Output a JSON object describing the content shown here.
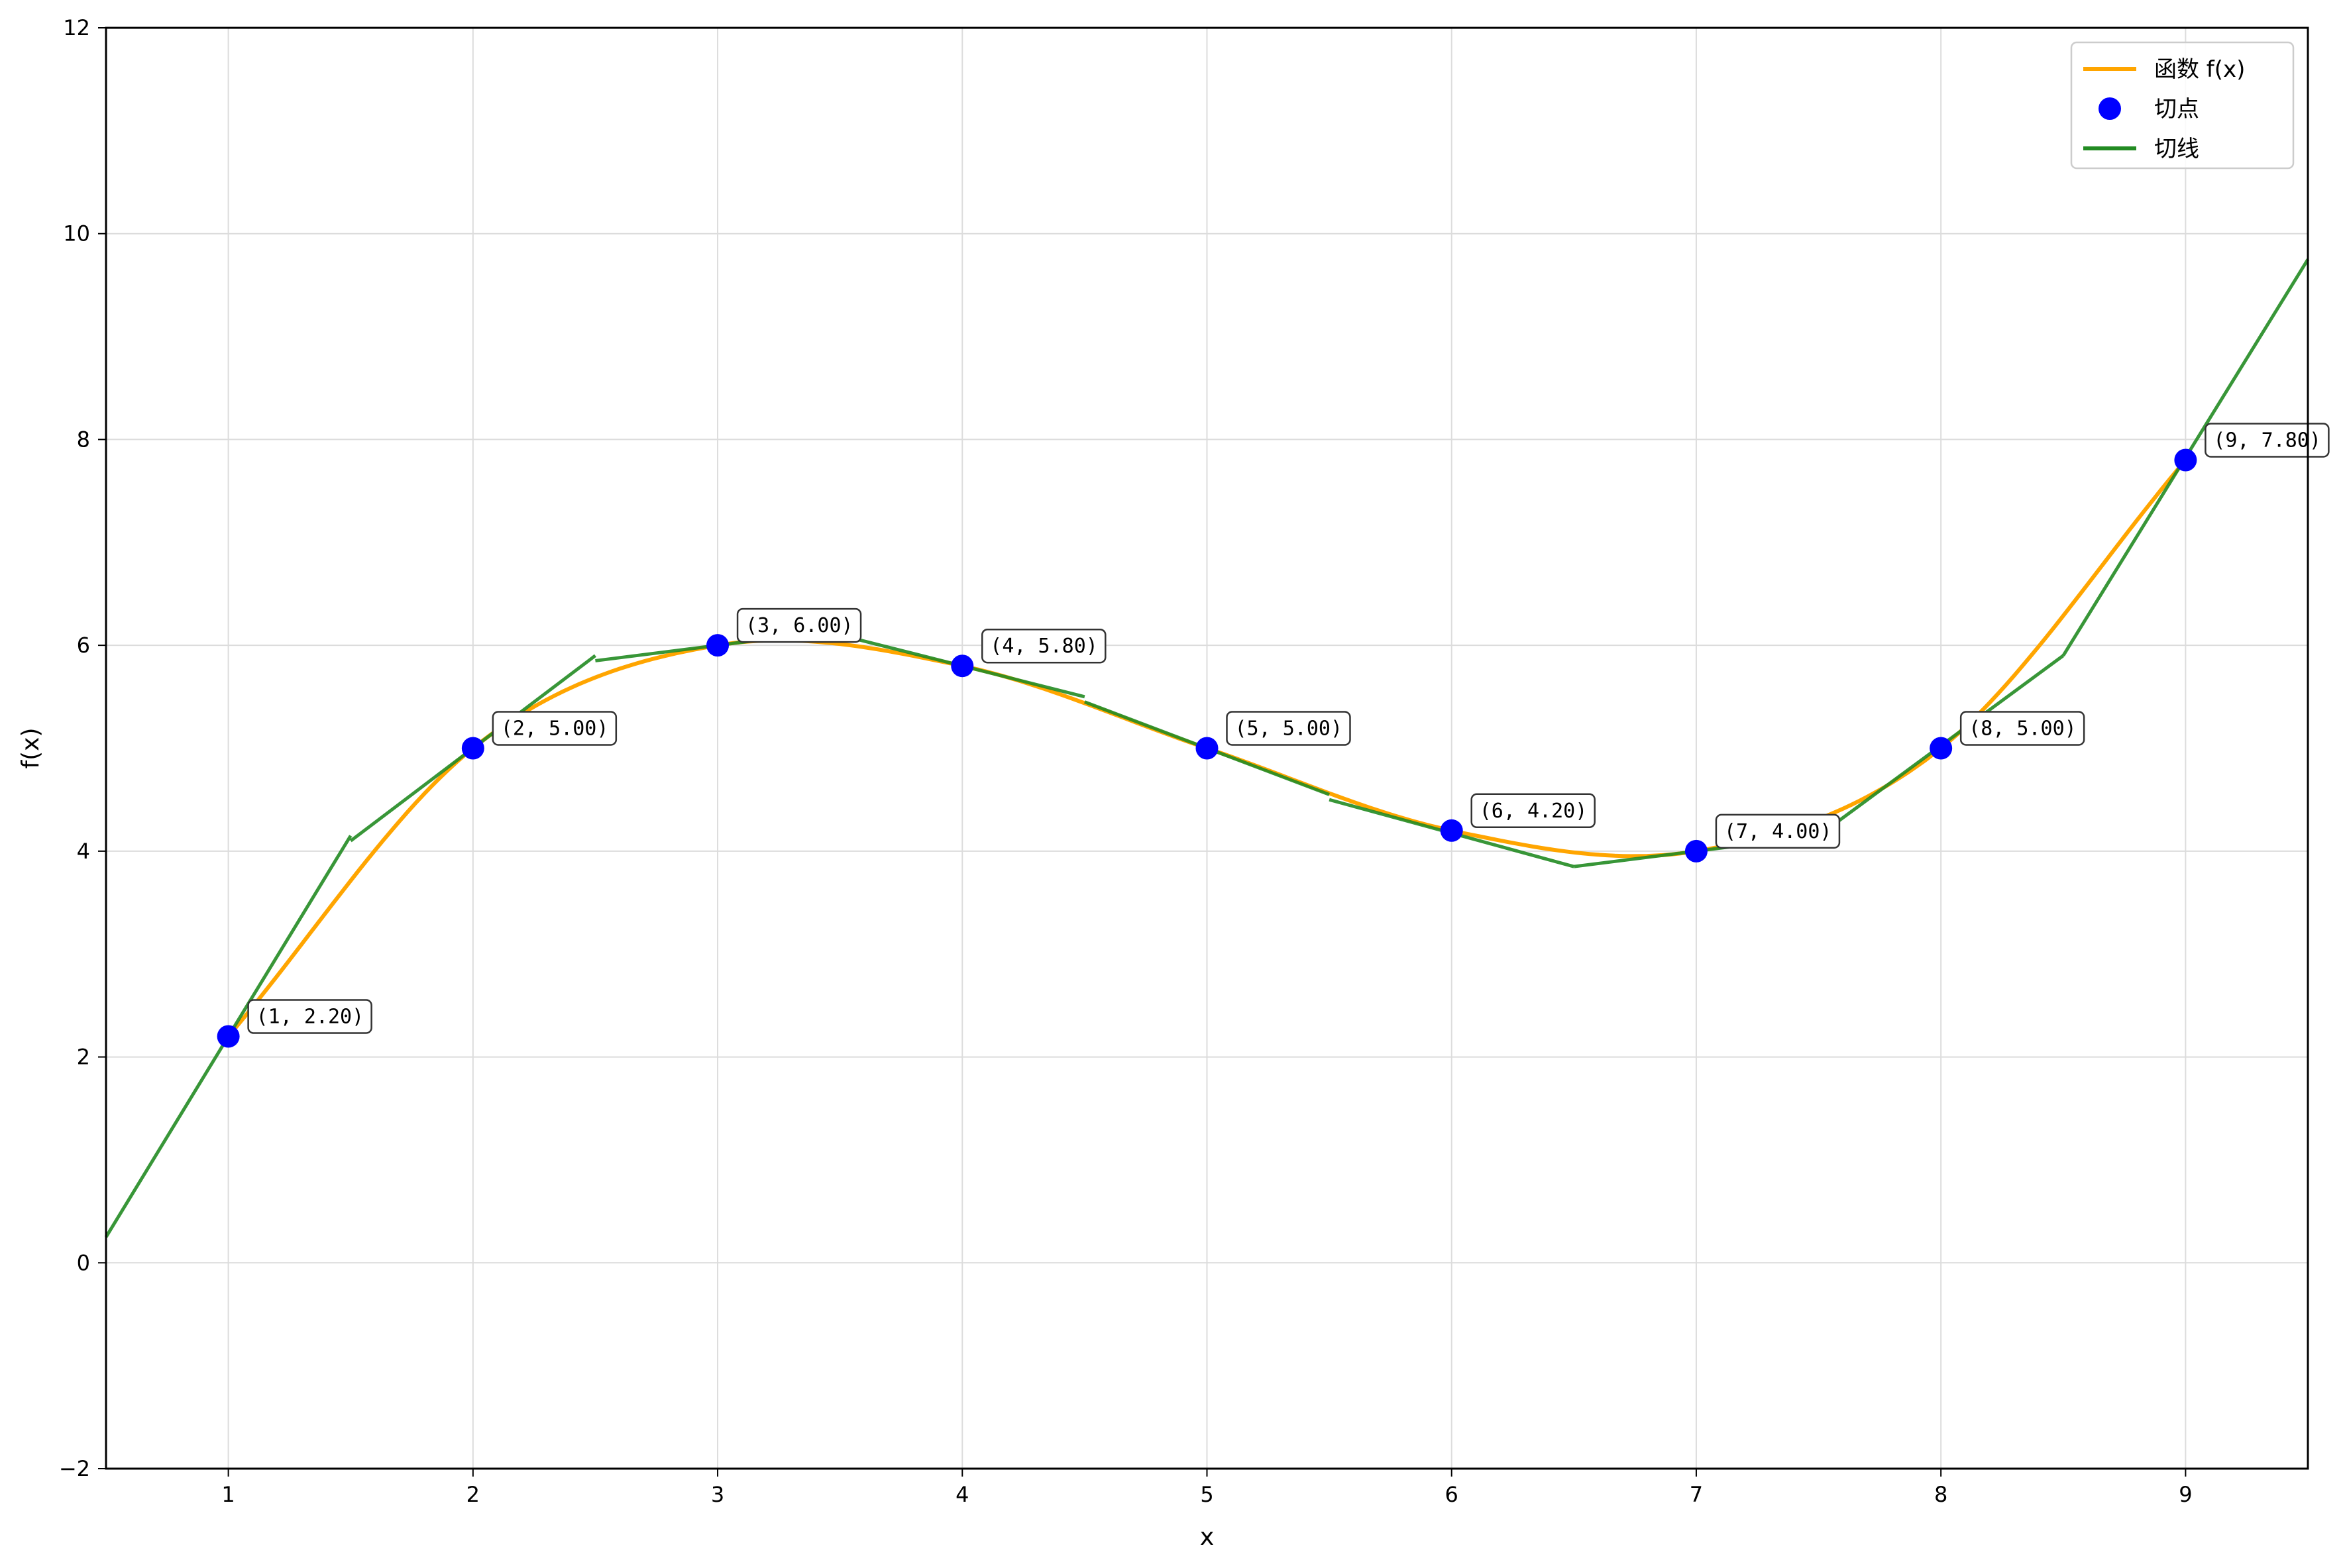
{
  "chart_data": {
    "type": "line",
    "xlabel": "x",
    "ylabel": "f(x)",
    "xlim": [
      0.5,
      9.5
    ],
    "ylim": [
      -2,
      12
    ],
    "xticks": [
      1,
      2,
      3,
      4,
      5,
      6,
      7,
      8,
      9
    ],
    "yticks": [
      -2,
      0,
      2,
      4,
      6,
      8,
      10,
      12
    ],
    "grid": true,
    "legend_position": "top-right",
    "legend": [
      {
        "label": "函数 f(x)",
        "kind": "line",
        "color": "#FFA500"
      },
      {
        "label": "切点",
        "kind": "marker",
        "color": "#0000FF"
      },
      {
        "label": "切线",
        "kind": "line",
        "color": "#228B22"
      }
    ],
    "function_curve": {
      "name": "函数 f(x)",
      "color": "#FFA500",
      "x": [
        1,
        2,
        3,
        4,
        5,
        6,
        7,
        8,
        9
      ],
      "y": [
        2.2,
        5.0,
        6.0,
        5.8,
        5.0,
        4.2,
        4.0,
        5.0,
        7.8
      ]
    },
    "tangent_points": {
      "name": "切点",
      "color": "#0000FF",
      "x": [
        1,
        2,
        3,
        4,
        5,
        6,
        7,
        8,
        9
      ],
      "y": [
        2.2,
        5.0,
        6.0,
        5.8,
        5.0,
        4.2,
        4.0,
        5.0,
        7.8
      ],
      "labels": [
        "(1, 2.20)",
        "(2, 5.00)",
        "(3, 6.00)",
        "(4, 5.80)",
        "(5, 5.00)",
        "(6, 4.20)",
        "(7, 4.00)",
        "(8, 5.00)",
        "(9, 7.80)"
      ]
    },
    "tangent_lines": {
      "name": "切线",
      "color": "#228B22",
      "segments": [
        {
          "x": [
            0.5,
            1.5
          ],
          "y": [
            0.25,
            4.15
          ]
        },
        {
          "x": [
            1.5,
            2.5
          ],
          "y": [
            4.1,
            5.9
          ]
        },
        {
          "x": [
            2.5,
            3.5
          ],
          "y": [
            5.85,
            6.15
          ]
        },
        {
          "x": [
            3.5,
            4.5
          ],
          "y": [
            6.1,
            5.5
          ]
        },
        {
          "x": [
            4.5,
            5.5
          ],
          "y": [
            5.45,
            4.55
          ]
        },
        {
          "x": [
            5.5,
            6.5
          ],
          "y": [
            4.5,
            3.85
          ]
        },
        {
          "x": [
            6.5,
            7.5
          ],
          "y": [
            3.85,
            4.15
          ]
        },
        {
          "x": [
            7.5,
            8.5
          ],
          "y": [
            4.15,
            5.9
          ]
        },
        {
          "x": [
            8.5,
            9.5
          ],
          "y": [
            5.9,
            9.75
          ]
        }
      ]
    }
  }
}
